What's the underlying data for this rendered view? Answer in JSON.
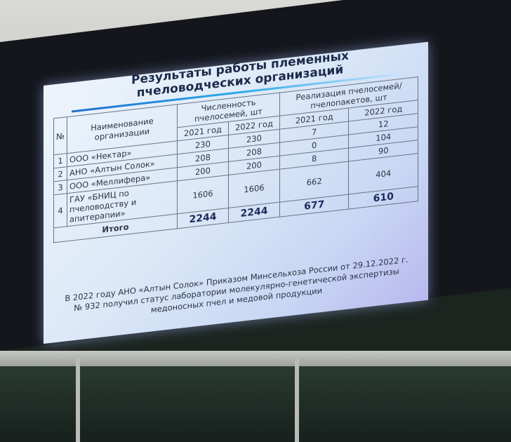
{
  "slide": {
    "title_line1": "Результаты работы племенных",
    "title_line2": "пчеловодческих организаций",
    "table": {
      "headers": {
        "num": "№",
        "name": "Наименование организации",
        "colonies": "Численность пчелосемей, шт",
        "sales": "Реализация пчелосемей/ пчелопакетов, шт",
        "y2021": "2021 год",
        "y2022": "2022 год"
      },
      "rows": [
        {
          "num": "1",
          "name": "ООО «Нектар»",
          "c2021": "230",
          "c2022": "230",
          "s2021": "7",
          "s2022": "12"
        },
        {
          "num": "2",
          "name": "АНО «Алтын Солок»",
          "c2021": "208",
          "c2022": "208",
          "s2021": "0",
          "s2022": "104"
        },
        {
          "num": "3",
          "name": "ООО «Меллифера»",
          "c2021": "200",
          "c2022": "200",
          "s2021": "8",
          "s2022": "90"
        },
        {
          "num": "4",
          "name": "ГАУ «БНИЦ по пчеловодству и апитерапии»",
          "c2021": "1606",
          "c2022": "1606",
          "s2021": "662",
          "s2022": "404"
        }
      ],
      "total": {
        "label": "Итого",
        "c2021": "2244",
        "c2022": "2244",
        "s2021": "677",
        "s2022": "610"
      }
    },
    "note": "В 2022 году АНО «Алтын Солок» Приказом Минсельхоза России от 29.12.2022 г. № 932 получил статус лаборатории молекулярно-генетической экспертизы медоносных пчел и медовой продукции"
  }
}
